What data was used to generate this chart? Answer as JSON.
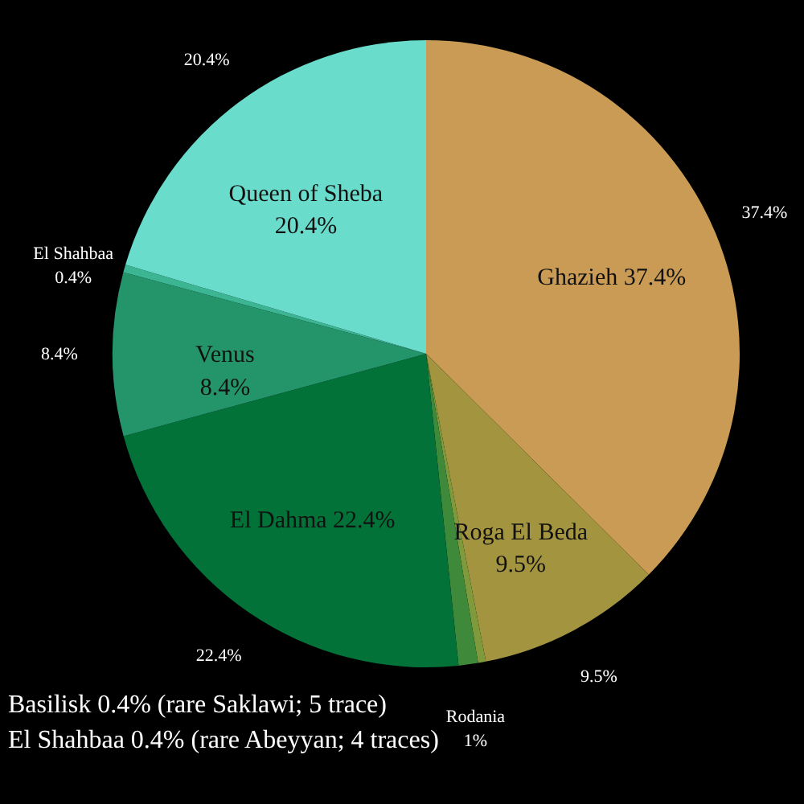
{
  "chart_data": {
    "type": "pie",
    "categories": [
      "Ghazieh",
      "Roga El Beda",
      null,
      "Rodania",
      "El Dahma",
      "Venus",
      "El Shahbaa",
      "Queen of Sheba"
    ],
    "values": [
      37.4,
      9.5,
      0.4,
      1,
      22.4,
      8.4,
      0.4,
      20.4
    ],
    "colors": [
      "#c99b55",
      "#a39440",
      "#7f9a3c",
      "#3f8a3a",
      "#037238",
      "#24956a",
      "#3bb592",
      "#6adccc"
    ],
    "value_labels": [
      "37.4%",
      "9.5%",
      null,
      "1%",
      "22.4%",
      "8.4%",
      "0.4%",
      "20.4%"
    ],
    "annotations": [
      {
        "text": "37.4%",
        "x": "Ghazieh"
      },
      {
        "text": "9.5%",
        "x": "Roga El Beda"
      },
      {
        "text": "22.4%",
        "x": "El Dahma"
      },
      {
        "text": "8.4%",
        "x": "Venus"
      },
      {
        "text": "20.4%",
        "x": "Queen of Sheba"
      },
      "Basilisk 0.4% (rare Saklawi; 5 trace)",
      "El Shahbaa 0.4% (rare Abeyyan; 4 traces)"
    ]
  }
}
